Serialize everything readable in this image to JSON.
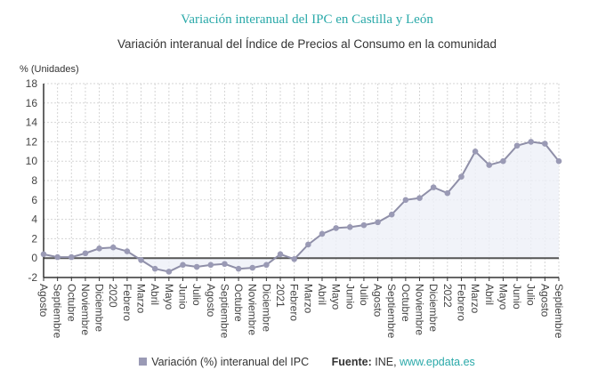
{
  "title": "Variación interanual del IPC en Castilla y León",
  "subtitle": "Variación interanual del Índice de Precios al Consumo en la comunidad",
  "legend": {
    "series_label": "Variación (%) interanual del IPC",
    "source_label": "Fuente:",
    "source_value": "INE,",
    "source_link": "www.epdata.es"
  },
  "colors": {
    "line": "#8f8fa8",
    "marker": "#9a9ab5",
    "fill": "#eef0f7",
    "title": "#2aa9a9"
  },
  "chart_data": {
    "type": "area",
    "ylabel": "% (Unidades)",
    "ylim": [
      -2,
      18
    ],
    "yticks": [
      -2,
      0,
      2,
      4,
      6,
      8,
      10,
      12,
      14,
      16,
      18
    ],
    "grid": true,
    "legend_placement": "bottom",
    "categories": [
      "Agosto",
      "Septiembre",
      "Octubre",
      "Noviembre",
      "Diciembre",
      "2020",
      "Febrero",
      "Marzo",
      "Abril",
      "Mayo",
      "Junio",
      "Julio",
      "Agosto",
      "Septiembre",
      "Octubre",
      "Noviembre",
      "Diciembre",
      "2021",
      "Febrero",
      "Marzo",
      "Abril",
      "Mayo",
      "Junio",
      "Julio",
      "Agosto",
      "Septiembre",
      "Octubre",
      "Noviembre",
      "Diciembre",
      "2022",
      "Febrero",
      "Marzo",
      "Abril",
      "Mayo",
      "Junio",
      "Julio",
      "Agosto",
      "Septiembre"
    ],
    "series": [
      {
        "name": "Variación (%) interanual del IPC",
        "values": [
          0.4,
          0.1,
          0.1,
          0.5,
          1.0,
          1.1,
          0.7,
          -0.2,
          -1.1,
          -1.4,
          -0.7,
          -0.9,
          -0.7,
          -0.6,
          -1.1,
          -1.0,
          -0.7,
          0.4,
          -0.1,
          1.4,
          2.5,
          3.1,
          3.2,
          3.4,
          3.7,
          4.5,
          6.0,
          6.2,
          7.3,
          6.7,
          8.4,
          11.0,
          9.6,
          10.0,
          11.6,
          12.0,
          11.8,
          10.0
        ]
      }
    ]
  }
}
